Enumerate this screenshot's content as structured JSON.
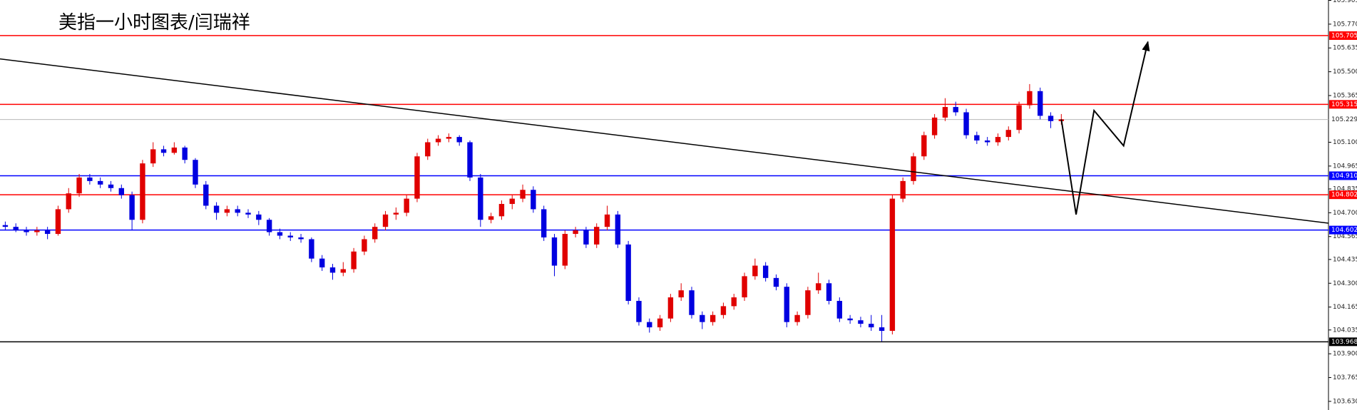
{
  "chart_data": {
    "type": "candlestick",
    "title": "美指一小时图表/闫瑞祥",
    "up_color": "#e00000",
    "down_color": "#0000e0",
    "xlim": [
      -0.5,
      125.3
    ],
    "ylim": [
      103.581,
      105.907
    ],
    "yticks": [
      105.905,
      {
        "value": 105.77,
        "label": "105.770"
      },
      105.635,
      {
        "value": 105.5,
        "label": "105.500"
      },
      105.365,
      {
        "value": 105.1,
        "label": "105.100"
      },
      104.965,
      104.835,
      {
        "value": 104.7,
        "label": "104.700"
      },
      104.565,
      104.435,
      {
        "value": 104.3,
        "label": "104.300"
      },
      104.165,
      104.035,
      {
        "value": 103.9,
        "label": "103.900"
      },
      103.765,
      {
        "value": 103.63,
        "label": "103.630"
      }
    ],
    "levels": [
      {
        "value": 105.705,
        "color": "#ff0000"
      },
      {
        "value": 105.315,
        "color": "#ff0000"
      },
      {
        "value": 105.229,
        "color": "#b8b8b8"
      },
      {
        "value": 104.91,
        "label": "104.910",
        "color": "#0000ff"
      },
      {
        "value": 104.802,
        "color": "#ff0000"
      },
      {
        "value": 104.602,
        "color": "#0000ff"
      },
      {
        "value": 103.968,
        "color": "#000000"
      }
    ],
    "trendline": {
      "x": [
        -0.5,
        125.3
      ],
      "y": [
        105.573,
        104.641
      ],
      "color": "#000000"
    },
    "forecast": {
      "x": [
        100,
        101.4,
        103.1,
        105.9,
        108.2
      ],
      "y": [
        105.23,
        104.69,
        105.28,
        105.08,
        105.67
      ],
      "color": "#000000"
    },
    "ohlc": [
      [
        104.63,
        104.65,
        104.6,
        104.62
      ],
      [
        104.62,
        104.64,
        104.59,
        104.6
      ],
      [
        104.6,
        104.62,
        104.57,
        104.59
      ],
      [
        104.59,
        104.62,
        104.57,
        104.6
      ],
      [
        104.6,
        104.62,
        104.55,
        104.58
      ],
      [
        104.58,
        104.74,
        104.57,
        104.72
      ],
      [
        104.72,
        104.84,
        104.7,
        104.81
      ],
      [
        104.81,
        104.92,
        104.79,
        104.9
      ],
      [
        104.9,
        104.92,
        104.86,
        104.88
      ],
      [
        104.88,
        104.9,
        104.84,
        104.86
      ],
      [
        104.86,
        104.88,
        104.82,
        104.84
      ],
      [
        104.84,
        104.86,
        104.78,
        104.8
      ],
      [
        104.8,
        104.82,
        104.6,
        104.66
      ],
      [
        104.66,
        105.0,
        104.64,
        104.98
      ],
      [
        104.98,
        105.1,
        104.96,
        105.06
      ],
      [
        105.06,
        105.08,
        105.02,
        105.04
      ],
      [
        105.04,
        105.1,
        105.03,
        105.07
      ],
      [
        105.07,
        105.08,
        104.98,
        105.0
      ],
      [
        105.0,
        105.01,
        104.84,
        104.86
      ],
      [
        104.86,
        104.88,
        104.72,
        104.74
      ],
      [
        104.74,
        104.76,
        104.66,
        104.7
      ],
      [
        104.7,
        104.74,
        104.68,
        104.72
      ],
      [
        104.72,
        104.74,
        104.68,
        104.7
      ],
      [
        104.7,
        104.72,
        104.67,
        104.69
      ],
      [
        104.69,
        104.71,
        104.63,
        104.66
      ],
      [
        104.66,
        104.67,
        104.57,
        104.59
      ],
      [
        104.59,
        104.61,
        104.55,
        104.57
      ],
      [
        104.57,
        104.59,
        104.54,
        104.56
      ],
      [
        104.56,
        104.58,
        104.53,
        104.55
      ],
      [
        104.55,
        104.56,
        104.42,
        104.44
      ],
      [
        104.44,
        104.46,
        104.37,
        104.39
      ],
      [
        104.39,
        104.41,
        104.32,
        104.36
      ],
      [
        104.36,
        104.42,
        104.34,
        104.38
      ],
      [
        104.38,
        104.5,
        104.36,
        104.48
      ],
      [
        104.48,
        104.57,
        104.46,
        104.55
      ],
      [
        104.55,
        104.64,
        104.53,
        104.62
      ],
      [
        104.62,
        104.71,
        104.6,
        104.69
      ],
      [
        104.69,
        104.73,
        104.66,
        104.7
      ],
      [
        104.7,
        104.8,
        104.68,
        104.78
      ],
      [
        104.78,
        105.04,
        104.76,
        105.02
      ],
      [
        105.02,
        105.12,
        105.0,
        105.1
      ],
      [
        105.1,
        105.14,
        105.08,
        105.12
      ],
      [
        105.12,
        105.15,
        105.1,
        105.13
      ],
      [
        105.13,
        105.14,
        105.08,
        105.1
      ],
      [
        105.1,
        105.11,
        104.88,
        104.9
      ],
      [
        104.9,
        104.92,
        104.62,
        104.66
      ],
      [
        104.66,
        104.7,
        104.64,
        104.68
      ],
      [
        104.68,
        104.77,
        104.66,
        104.75
      ],
      [
        104.75,
        104.8,
        104.72,
        104.78
      ],
      [
        104.78,
        104.86,
        104.76,
        104.83
      ],
      [
        104.83,
        104.85,
        104.7,
        104.72
      ],
      [
        104.72,
        104.74,
        104.54,
        104.56
      ],
      [
        104.56,
        104.58,
        104.34,
        104.4
      ],
      [
        104.4,
        104.6,
        104.38,
        104.58
      ],
      [
        104.58,
        104.62,
        104.56,
        104.6
      ],
      [
        104.6,
        104.62,
        104.5,
        104.52
      ],
      [
        104.52,
        104.64,
        104.5,
        104.62
      ],
      [
        104.62,
        104.74,
        104.6,
        104.69
      ],
      [
        104.69,
        104.71,
        104.5,
        104.52
      ],
      [
        104.52,
        104.54,
        104.18,
        104.2
      ],
      [
        104.2,
        104.22,
        104.06,
        104.08
      ],
      [
        104.08,
        104.1,
        104.02,
        104.05
      ],
      [
        104.05,
        104.12,
        104.03,
        104.1
      ],
      [
        104.1,
        104.24,
        104.08,
        104.22
      ],
      [
        104.22,
        104.3,
        104.2,
        104.26
      ],
      [
        104.26,
        104.28,
        104.1,
        104.12
      ],
      [
        104.12,
        104.14,
        104.04,
        104.08
      ],
      [
        104.08,
        104.14,
        104.06,
        104.12
      ],
      [
        104.12,
        104.19,
        104.1,
        104.17
      ],
      [
        104.17,
        104.24,
        104.15,
        104.22
      ],
      [
        104.22,
        104.36,
        104.2,
        104.34
      ],
      [
        104.34,
        104.44,
        104.32,
        104.4
      ],
      [
        104.4,
        104.42,
        104.31,
        104.33
      ],
      [
        104.33,
        104.35,
        104.26,
        104.28
      ],
      [
        104.28,
        104.3,
        104.05,
        104.08
      ],
      [
        104.08,
        104.14,
        104.06,
        104.12
      ],
      [
        104.12,
        104.28,
        104.1,
        104.26
      ],
      [
        104.26,
        104.36,
        104.24,
        104.3
      ],
      [
        104.3,
        104.32,
        104.18,
        104.2
      ],
      [
        104.2,
        104.22,
        104.08,
        104.1
      ],
      [
        104.1,
        104.12,
        104.07,
        104.09
      ],
      [
        104.09,
        104.11,
        104.05,
        104.07
      ],
      [
        104.07,
        104.12,
        104.03,
        104.05
      ],
      [
        104.05,
        104.12,
        103.97,
        104.03
      ],
      [
        104.03,
        104.8,
        104.01,
        104.78
      ],
      [
        104.78,
        104.9,
        104.76,
        104.88
      ],
      [
        104.88,
        105.04,
        104.86,
        105.02
      ],
      [
        105.02,
        105.16,
        105.0,
        105.14
      ],
      [
        105.14,
        105.26,
        105.12,
        105.24
      ],
      [
        105.24,
        105.35,
        105.22,
        105.3
      ],
      [
        105.3,
        105.33,
        105.25,
        105.27
      ],
      [
        105.27,
        105.29,
        105.12,
        105.14
      ],
      [
        105.14,
        105.16,
        105.09,
        105.11
      ],
      [
        105.11,
        105.13,
        105.08,
        105.1
      ],
      [
        105.1,
        105.15,
        105.08,
        105.13
      ],
      [
        105.13,
        105.19,
        105.11,
        105.17
      ],
      [
        105.17,
        105.33,
        105.15,
        105.31
      ],
      [
        105.31,
        105.43,
        105.29,
        105.39
      ],
      [
        105.39,
        105.41,
        105.23,
        105.25
      ],
      [
        105.25,
        105.27,
        105.18,
        105.22
      ],
      [
        105.22,
        105.26,
        105.2,
        105.23
      ]
    ]
  }
}
